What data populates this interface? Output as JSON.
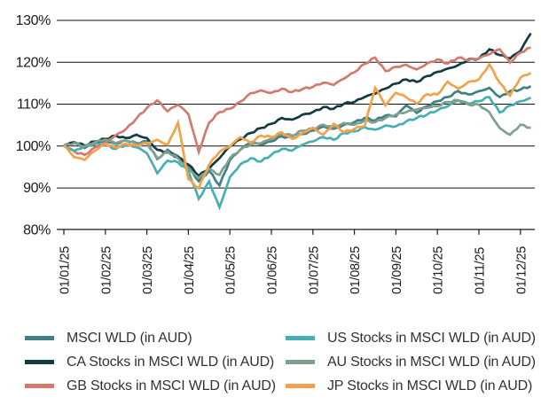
{
  "chart_data": {
    "type": "line",
    "title": "",
    "xlabel": "",
    "ylabel": "",
    "ylim": [
      80,
      130
    ],
    "y_ticks": [
      80,
      90,
      100,
      110,
      120,
      130
    ],
    "y_tick_labels": [
      "80%",
      "90%",
      "100%",
      "110%",
      "120%",
      "130%"
    ],
    "x_tick_labels": [
      "01/01/25",
      "01/02/25",
      "01/03/25",
      "01/04/25",
      "01/05/25",
      "01/06/25",
      "01/07/25",
      "01/08/25",
      "01/09/25",
      "01/10/25",
      "01/11/25",
      "01/12/25"
    ],
    "points_per_month": 4,
    "grid": "horizontal",
    "legend_position": "bottom-two-columns",
    "axis_color": "#1a1a1a",
    "grid_color": "#111111",
    "series": [
      {
        "name": "MSCI WLD (in AUD)",
        "color": "#417F84",
        "values": [
          100.0,
          100.6,
          99.4,
          100.6,
          101.0,
          100.4,
          101.2,
          100.6,
          101.0,
          96.8,
          99.0,
          97.5,
          95.0,
          91.5,
          94.0,
          90.5,
          96.5,
          99.0,
          100.8,
          100.2,
          101.0,
          102.2,
          101.8,
          102.8,
          103.6,
          104.6,
          104.0,
          105.0,
          105.6,
          106.6,
          106.0,
          107.2,
          107.0,
          109.6,
          107.8,
          109.4,
          110.6,
          111.6,
          113.0,
          112.2,
          113.0,
          113.8,
          111.6,
          113.0,
          113.4,
          114.2
        ]
      },
      {
        "name": "CA Stocks in MSCI WLD (in AUD)",
        "color": "#133B41",
        "values": [
          100.0,
          100.8,
          100.0,
          101.0,
          101.6,
          102.4,
          101.8,
          102.6,
          101.8,
          99.0,
          98.4,
          97.2,
          95.5,
          92.8,
          94.5,
          97.0,
          99.8,
          101.5,
          103.0,
          104.2,
          105.2,
          106.6,
          106.2,
          107.4,
          108.0,
          109.2,
          108.8,
          110.0,
          110.4,
          111.6,
          112.4,
          113.6,
          114.8,
          115.8,
          115.2,
          116.6,
          117.6,
          118.4,
          119.2,
          120.6,
          120.8,
          123.0,
          121.6,
          120.8,
          122.6,
          126.8
        ]
      },
      {
        "name": "GB Stocks in MSCI WLD (in AUD)",
        "color": "#D37A6D",
        "values": [
          100.0,
          98.6,
          97.8,
          99.6,
          100.8,
          102.5,
          104.0,
          106.5,
          109.0,
          110.8,
          108.2,
          109.8,
          107.5,
          98.5,
          105.5,
          108.0,
          108.8,
          110.5,
          112.5,
          113.2,
          112.6,
          113.6,
          112.8,
          113.5,
          114.0,
          115.0,
          114.5,
          116.0,
          117.5,
          119.5,
          121.0,
          117.8,
          118.8,
          119.3,
          118.2,
          119.6,
          120.6,
          119.6,
          121.0,
          120.4,
          120.8,
          121.8,
          123.0,
          119.8,
          122.2,
          123.4
        ]
      },
      {
        "name": "US Stocks in MSCI WLD (in AUD)",
        "color": "#47AFB3",
        "values": [
          100.0,
          98.8,
          99.8,
          100.4,
          100.2,
          99.2,
          100.2,
          99.6,
          98.2,
          93.4,
          96.4,
          96.0,
          94.0,
          87.3,
          91.5,
          85.3,
          92.5,
          95.5,
          97.0,
          96.2,
          97.8,
          99.2,
          98.8,
          100.2,
          101.0,
          102.0,
          101.4,
          103.0,
          103.4,
          104.4,
          103.8,
          104.8,
          104.6,
          105.8,
          106.6,
          107.4,
          108.4,
          109.4,
          110.8,
          110.0,
          110.6,
          111.6,
          107.9,
          109.6,
          110.6,
          111.4
        ]
      },
      {
        "name": "AU Stocks in MSCI WLD (in AUD)",
        "color": "#7EA08C",
        "values": [
          100.0,
          100.6,
          99.8,
          100.8,
          101.4,
          100.6,
          101.2,
          100.4,
          100.6,
          97.0,
          98.6,
          97.0,
          94.6,
          92.3,
          94.5,
          93.0,
          97.0,
          99.0,
          100.2,
          100.6,
          101.6,
          102.8,
          102.4,
          103.6,
          104.0,
          105.0,
          104.4,
          105.4,
          105.0,
          106.0,
          105.6,
          106.6,
          107.4,
          108.0,
          108.6,
          109.0,
          109.4,
          110.4,
          110.8,
          109.8,
          109.8,
          108.0,
          104.2,
          102.6,
          105.0,
          104.3
        ]
      },
      {
        "name": "JP Stocks in MSCI WLD (in AUD)",
        "color": "#F4A14B",
        "values": [
          100.0,
          97.2,
          96.6,
          98.8,
          100.4,
          99.6,
          100.4,
          100.0,
          100.6,
          101.4,
          100.2,
          105.5,
          92.0,
          89.8,
          95.5,
          98.5,
          99.8,
          102.0,
          100.6,
          102.4,
          102.0,
          103.2,
          101.6,
          103.0,
          104.3,
          102.6,
          105.2,
          103.2,
          104.0,
          104.8,
          113.8,
          109.6,
          112.6,
          111.5,
          110.0,
          112.3,
          112.2,
          115.3,
          113.6,
          115.2,
          115.8,
          119.4,
          115.0,
          111.9,
          116.2,
          117.3
        ]
      }
    ]
  }
}
